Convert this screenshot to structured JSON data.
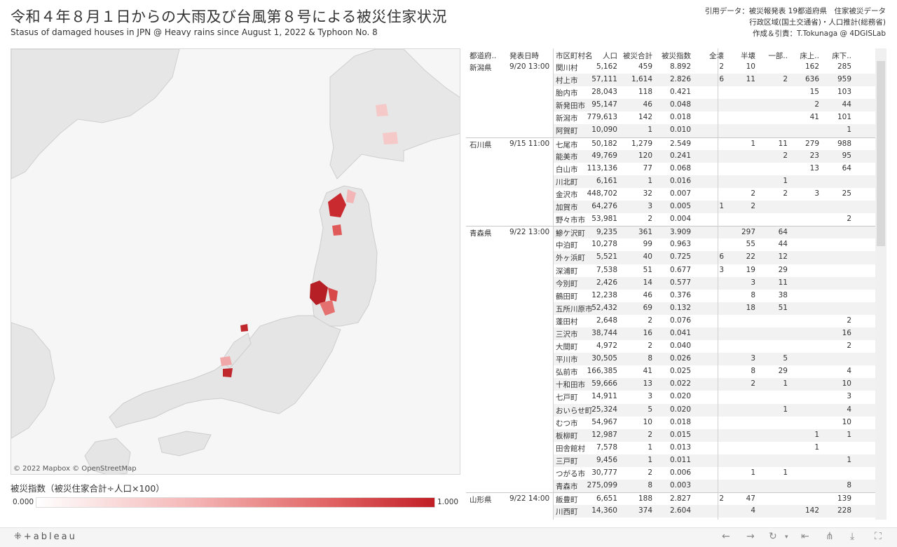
{
  "header": {
    "title": "令和４年８月１日からの大雨及び台風第８号による被災住家状況",
    "subtitle": "Stasus of damaged houses in JPN @ Heavy rains since August 1, 2022 & Typhoon No. 8",
    "credit1": "引用データ：被災報発表 19都道府県　住家被災データ",
    "credit2": "行政区域(国土交通省)・人口推計(総務省)",
    "credit3": "作成＆引責：T.Tokunaga @ 4DGISLab"
  },
  "map": {
    "attribution": "© 2022 Mapbox  © OpenStreetMap"
  },
  "legend": {
    "title": "被災指数（被災住家合計÷人口×100）",
    "min": "0.000",
    "max": "1.000"
  },
  "table": {
    "columns": {
      "pref": "都道府..",
      "date": "発表日時",
      "muni": "市区町村名",
      "pop": "人口",
      "total": "被災合計",
      "index": "被災指数",
      "zen": "全壊",
      "han": "半壊",
      "ichi": "一部..",
      "yj": "床上..",
      "yk": "床下.."
    },
    "groups": [
      {
        "pref": "新潟県",
        "date": "9/20 13:00",
        "rows": [
          {
            "muni": "関川村",
            "pop": "5,162",
            "total": "459",
            "index": "8.892",
            "zen": "2",
            "han": "10",
            "ichi": "",
            "yj": "162",
            "yk": "285"
          },
          {
            "muni": "村上市",
            "pop": "57,111",
            "total": "1,614",
            "index": "2.826",
            "zen": "6",
            "han": "11",
            "ichi": "2",
            "yj": "636",
            "yk": "959"
          },
          {
            "muni": "胎内市",
            "pop": "28,043",
            "total": "118",
            "index": "0.421",
            "zen": "",
            "han": "",
            "ichi": "",
            "yj": "15",
            "yk": "103"
          },
          {
            "muni": "新発田市",
            "pop": "95,147",
            "total": "46",
            "index": "0.048",
            "zen": "",
            "han": "",
            "ichi": "",
            "yj": "2",
            "yk": "44"
          },
          {
            "muni": "新潟市",
            "pop": "779,613",
            "total": "142",
            "index": "0.018",
            "zen": "",
            "han": "",
            "ichi": "",
            "yj": "41",
            "yk": "101"
          },
          {
            "muni": "阿賀町",
            "pop": "10,090",
            "total": "1",
            "index": "0.010",
            "zen": "",
            "han": "",
            "ichi": "",
            "yj": "",
            "yk": "1"
          }
        ]
      },
      {
        "pref": "石川県",
        "date": "9/15 11:00",
        "rows": [
          {
            "muni": "七尾市",
            "pop": "50,182",
            "total": "1,279",
            "index": "2.549",
            "zen": "",
            "han": "1",
            "ichi": "11",
            "yj": "279",
            "yk": "988"
          },
          {
            "muni": "能美市",
            "pop": "49,769",
            "total": "120",
            "index": "0.241",
            "zen": "",
            "han": "",
            "ichi": "2",
            "yj": "23",
            "yk": "95"
          },
          {
            "muni": "白山市",
            "pop": "113,136",
            "total": "77",
            "index": "0.068",
            "zen": "",
            "han": "",
            "ichi": "",
            "yj": "13",
            "yk": "64"
          },
          {
            "muni": "川北町",
            "pop": "6,161",
            "total": "1",
            "index": "0.016",
            "zen": "",
            "han": "",
            "ichi": "1",
            "yj": "",
            "yk": ""
          },
          {
            "muni": "金沢市",
            "pop": "448,702",
            "total": "32",
            "index": "0.007",
            "zen": "",
            "han": "2",
            "ichi": "2",
            "yj": "3",
            "yk": "25"
          },
          {
            "muni": "加賀市",
            "pop": "64,276",
            "total": "3",
            "index": "0.005",
            "zen": "1",
            "han": "2",
            "ichi": "",
            "yj": "",
            "yk": ""
          },
          {
            "muni": "野々市市",
            "pop": "53,981",
            "total": "2",
            "index": "0.004",
            "zen": "",
            "han": "",
            "ichi": "",
            "yj": "",
            "yk": "2"
          }
        ]
      },
      {
        "pref": "青森県",
        "date": "9/22 13:00",
        "rows": [
          {
            "muni": "鰺ケ沢町",
            "pop": "9,235",
            "total": "361",
            "index": "3.909",
            "zen": "",
            "han": "297",
            "ichi": "64",
            "yj": "",
            "yk": ""
          },
          {
            "muni": "中泊町",
            "pop": "10,278",
            "total": "99",
            "index": "0.963",
            "zen": "",
            "han": "55",
            "ichi": "44",
            "yj": "",
            "yk": ""
          },
          {
            "muni": "外ヶ浜町",
            "pop": "5,521",
            "total": "40",
            "index": "0.725",
            "zen": "6",
            "han": "22",
            "ichi": "12",
            "yj": "",
            "yk": ""
          },
          {
            "muni": "深浦町",
            "pop": "7,538",
            "total": "51",
            "index": "0.677",
            "zen": "3",
            "han": "19",
            "ichi": "29",
            "yj": "",
            "yk": ""
          },
          {
            "muni": "今別町",
            "pop": "2,426",
            "total": "14",
            "index": "0.577",
            "zen": "",
            "han": "3",
            "ichi": "11",
            "yj": "",
            "yk": ""
          },
          {
            "muni": "鶴田町",
            "pop": "12,238",
            "total": "46",
            "index": "0.376",
            "zen": "",
            "han": "8",
            "ichi": "38",
            "yj": "",
            "yk": ""
          },
          {
            "muni": "五所川原市",
            "pop": "52,432",
            "total": "69",
            "index": "0.132",
            "zen": "",
            "han": "18",
            "ichi": "51",
            "yj": "",
            "yk": ""
          },
          {
            "muni": "蓬田村",
            "pop": "2,648",
            "total": "2",
            "index": "0.076",
            "zen": "",
            "han": "",
            "ichi": "",
            "yj": "",
            "yk": "2"
          },
          {
            "muni": "三沢市",
            "pop": "38,744",
            "total": "16",
            "index": "0.041",
            "zen": "",
            "han": "",
            "ichi": "",
            "yj": "",
            "yk": "16"
          },
          {
            "muni": "大間町",
            "pop": "4,972",
            "total": "2",
            "index": "0.040",
            "zen": "",
            "han": "",
            "ichi": "",
            "yj": "",
            "yk": "2"
          },
          {
            "muni": "平川市",
            "pop": "30,505",
            "total": "8",
            "index": "0.026",
            "zen": "",
            "han": "3",
            "ichi": "5",
            "yj": "",
            "yk": ""
          },
          {
            "muni": "弘前市",
            "pop": "166,385",
            "total": "41",
            "index": "0.025",
            "zen": "",
            "han": "8",
            "ichi": "29",
            "yj": "",
            "yk": "4"
          },
          {
            "muni": "十和田市",
            "pop": "59,666",
            "total": "13",
            "index": "0.022",
            "zen": "",
            "han": "2",
            "ichi": "1",
            "yj": "",
            "yk": "10"
          },
          {
            "muni": "七戸町",
            "pop": "14,911",
            "total": "3",
            "index": "0.020",
            "zen": "",
            "han": "",
            "ichi": "",
            "yj": "",
            "yk": "3"
          },
          {
            "muni": "おいらせ町",
            "pop": "25,324",
            "total": "5",
            "index": "0.020",
            "zen": "",
            "han": "",
            "ichi": "1",
            "yj": "",
            "yk": "4"
          },
          {
            "muni": "むつ市",
            "pop": "54,967",
            "total": "10",
            "index": "0.018",
            "zen": "",
            "han": "",
            "ichi": "",
            "yj": "",
            "yk": "10"
          },
          {
            "muni": "板柳町",
            "pop": "12,987",
            "total": "2",
            "index": "0.015",
            "zen": "",
            "han": "",
            "ichi": "",
            "yj": "1",
            "yk": "1"
          },
          {
            "muni": "田舎館村",
            "pop": "7,578",
            "total": "1",
            "index": "0.013",
            "zen": "",
            "han": "",
            "ichi": "",
            "yj": "1",
            "yk": ""
          },
          {
            "muni": "三戸町",
            "pop": "9,456",
            "total": "1",
            "index": "0.011",
            "zen": "",
            "han": "",
            "ichi": "",
            "yj": "",
            "yk": "1"
          },
          {
            "muni": "つがる市",
            "pop": "30,777",
            "total": "2",
            "index": "0.006",
            "zen": "",
            "han": "1",
            "ichi": "1",
            "yj": "",
            "yk": ""
          },
          {
            "muni": "青森市",
            "pop": "275,099",
            "total": "8",
            "index": "0.003",
            "zen": "",
            "han": "",
            "ichi": "",
            "yj": "",
            "yk": "8"
          }
        ]
      },
      {
        "pref": "山形県",
        "date": "9/22 14:00",
        "rows": [
          {
            "muni": "飯豊町",
            "pop": "6,651",
            "total": "188",
            "index": "2.827",
            "zen": "2",
            "han": "47",
            "ichi": "",
            "yj": "",
            "yk": "139"
          },
          {
            "muni": "川西町",
            "pop": "14,360",
            "total": "374",
            "index": "2.604",
            "zen": "",
            "han": "4",
            "ichi": "",
            "yj": "142",
            "yk": "228"
          }
        ]
      }
    ]
  },
  "footer": {
    "logo": "⁜+ableau"
  }
}
